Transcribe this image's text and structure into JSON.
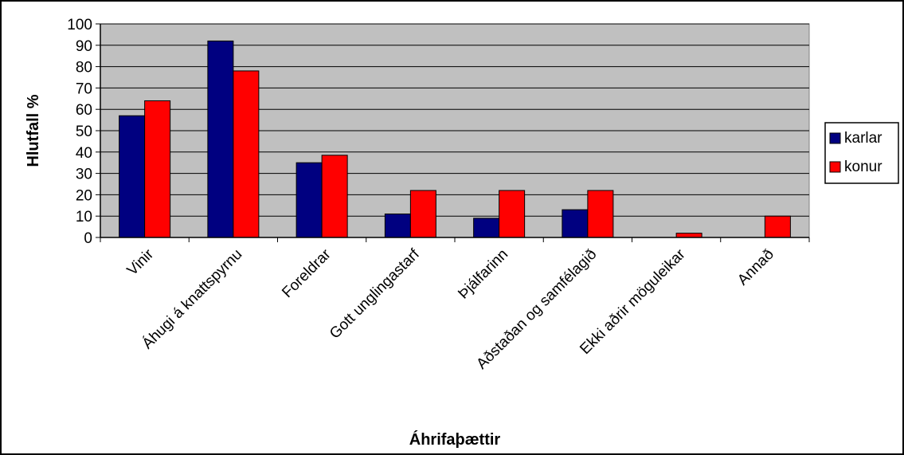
{
  "chart_data": {
    "type": "bar",
    "title": "",
    "xlabel": "Áhrifaþættir",
    "ylabel": "Hlutfall %",
    "ylim": [
      0,
      100
    ],
    "yticks": [
      0,
      10,
      20,
      30,
      40,
      50,
      60,
      70,
      80,
      90,
      100
    ],
    "categories": [
      "Vinir",
      "Áhugi á knattspyrnu",
      "Foreldrar",
      "Gott unglingastarf",
      "Þjálfarinn",
      "Aðstaðan og samfélagið",
      "Ekki aðrir möguleikar",
      "Annað"
    ],
    "series": [
      {
        "name": "karlar",
        "values": [
          57,
          92,
          35,
          11,
          9,
          13,
          0,
          0
        ]
      },
      {
        "name": "konur",
        "values": [
          64,
          78,
          38.5,
          22,
          22,
          22,
          2,
          10
        ]
      }
    ],
    "grid": true,
    "legend_position": "right",
    "colors": {
      "karlar": "#000080",
      "konur": "#ff0000",
      "plot_bg": "#c0c0c0",
      "frame": "#000000"
    }
  }
}
